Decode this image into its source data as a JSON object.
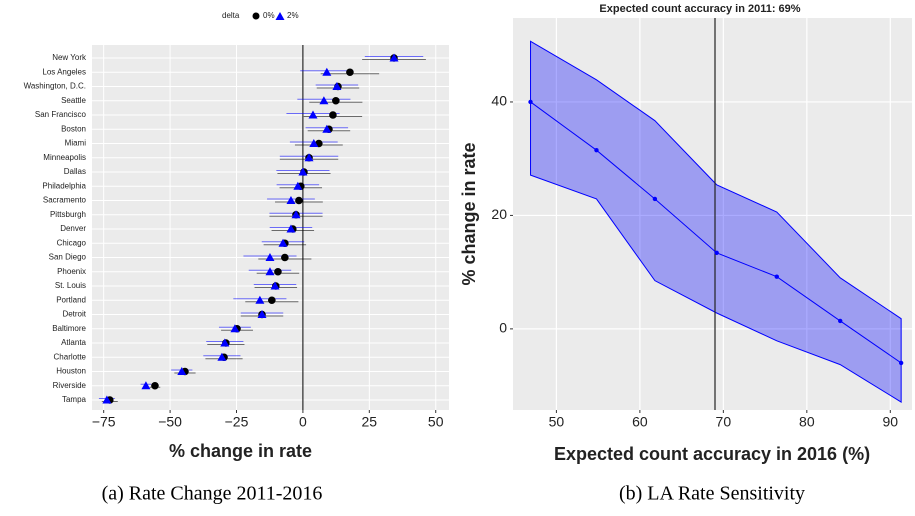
{
  "chart_data": [
    {
      "type": "dot",
      "legend_title": "delta",
      "categories": [
        "New York",
        "Los Angeles",
        "Washington, D.C.",
        "Seattle",
        "San Francisco",
        "Boston",
        "Miami",
        "Minneapolis",
        "Dallas",
        "Philadelphia",
        "Sacramento",
        "Pittsburgh",
        "Denver",
        "Chicago",
        "San Diego",
        "Phoenix",
        "St. Louis",
        "Portland",
        "Detroit",
        "Baltimore",
        "Atlanta",
        "Charlotte",
        "Houston",
        "Riverside",
        "Tampa"
      ],
      "series": [
        {
          "name": "0%",
          "color": "#000000",
          "marker": "circle",
          "values": [
            34.3,
            17.7,
            13.2,
            12.4,
            11.3,
            9.8,
            6.0,
            2.3,
            0.4,
            -0.8,
            -1.5,
            -2.6,
            -3.8,
            -6.8,
            -6.8,
            -9.4,
            -10.2,
            -11.7,
            -15.4,
            -24.8,
            -29.0,
            -29.7,
            -44.4,
            -55.7,
            -72.7
          ],
          "errors": [
            12,
            11,
            8,
            10,
            11,
            8,
            9,
            11,
            10,
            8,
            9,
            10,
            8,
            8,
            10,
            8,
            8,
            10,
            8,
            6,
            7,
            7,
            4,
            2,
            3
          ]
        },
        {
          "name": "2%",
          "color": "#0000ff",
          "marker": "triangle",
          "values": [
            34.3,
            9.0,
            12.8,
            7.9,
            3.8,
            9.0,
            4.1,
            2.3,
            0.0,
            -1.9,
            -4.5,
            -2.6,
            -4.5,
            -7.5,
            -12.4,
            -12.4,
            -10.5,
            -16.2,
            -15.4,
            -25.6,
            -29.4,
            -30.5,
            -45.6,
            -59.1,
            -73.8
          ],
          "errors": [
            11,
            10,
            8,
            10,
            10,
            8,
            9,
            11,
            10,
            8,
            9,
            10,
            8,
            8,
            10,
            8,
            8,
            10,
            8,
            6,
            7,
            7,
            4,
            2,
            3
          ]
        }
      ],
      "xlim": [
        -79.4,
        55
      ],
      "xticks": [
        {
          "value": -75,
          "label": "−75"
        },
        {
          "value": -50,
          "label": "−50"
        },
        {
          "value": -25,
          "label": "−25"
        },
        0,
        25,
        50
      ],
      "vline": 0,
      "grid": true,
      "xlabel": "% change in rate",
      "caption": "(a) Rate Change 2011-2016"
    },
    {
      "type": "line",
      "title": "Expected count accuracy in 2011: 69%",
      "x": [
        46.9,
        54.8,
        61.8,
        69.2,
        76.4,
        84.0,
        91.3
      ],
      "values": [
        40,
        31.5,
        22.9,
        13.4,
        9.2,
        1.4,
        -6.0
      ],
      "upper": [
        50.7,
        43.9,
        36.7,
        25.4,
        20.6,
        9.0,
        1.8
      ],
      "lower": [
        27.1,
        22.9,
        8.5,
        2.8,
        -2.1,
        -6.3,
        -12.9
      ],
      "color": "#0000ff",
      "xlim": [
        44.8,
        92.6
      ],
      "ylim": [
        -14.3,
        54.8
      ],
      "xticks": [
        50,
        60,
        70,
        80,
        90
      ],
      "yticks": [
        0,
        20,
        40
      ],
      "vline": 69,
      "grid": true,
      "xlabel": "Expected count accuracy in 2016 (%)",
      "ylabel": "% change in rate",
      "caption": "(b) LA Rate Sensitivity"
    }
  ]
}
